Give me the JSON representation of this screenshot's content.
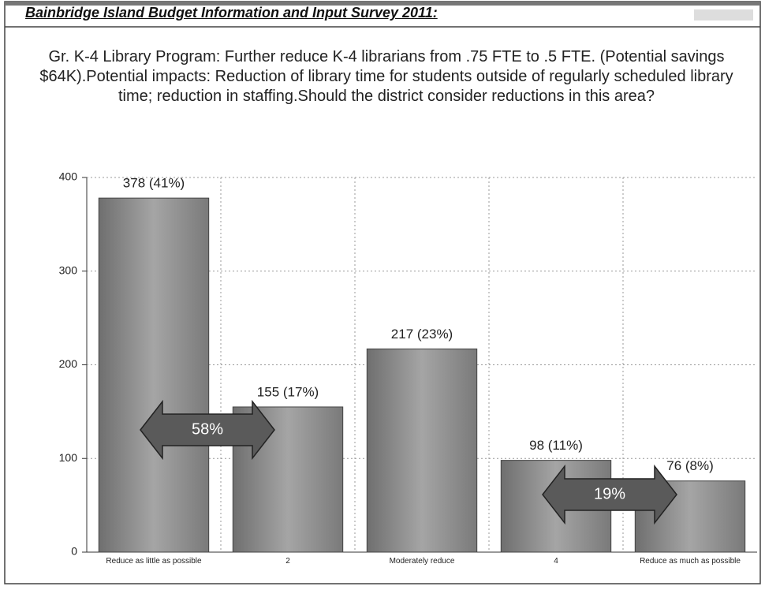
{
  "header": "Bainbridge Island Budget Information and Input Survey 2011:",
  "chart_data": {
    "type": "bar",
    "title": "Gr. K-4 Library Program: Further reduce K-4 librarians from .75 FTE to .5 FTE. (Potential savings $64K).Potential impacts: Reduction of library time for students outside of regularly scheduled library time; reduction in staffing.Should the district consider reductions in this area?",
    "categories": [
      "Reduce as little as possible",
      "2",
      "Moderately reduce",
      "4",
      "Reduce as much as possible"
    ],
    "values": [
      378,
      155,
      217,
      98,
      76
    ],
    "value_labels": [
      "378 (41%)",
      "155 (17%)",
      "217 (23%)",
      "98 (11%)",
      "76 (8%)"
    ],
    "color": "#8a8a8a",
    "ylim": [
      0,
      400
    ],
    "yticks": [
      0,
      100,
      200,
      300,
      400
    ],
    "grid": true,
    "annotations": [
      "58%",
      "19%"
    ]
  }
}
